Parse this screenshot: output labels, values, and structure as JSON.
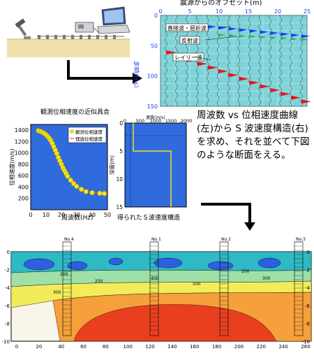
{
  "seismogram": {
    "title": "震源からのオフセット(m)",
    "x_ticks": [
      "0",
      "5",
      "10",
      "15",
      "20",
      "25"
    ],
    "y_ticks": [
      "0",
      "50",
      "100",
      "150"
    ],
    "ylabel": "走時(ms)",
    "labels": {
      "direct": "直接波・屈折波",
      "reflected": "反射波",
      "rayleigh": "レイリー波"
    },
    "colors": {
      "bg": "#7fd3d8",
      "direct": "#1a3cff",
      "reflected": "#2fb05a",
      "rayleigh": "#e8121a"
    }
  },
  "dispersion": {
    "title": "観測位相速度の近似具合",
    "legend": [
      "観測位相速度",
      "理論位相速度"
    ],
    "xlabel": "周波数(Hz)",
    "ylabel": "位相速度(m/s)",
    "x_ticks": [
      "0",
      "10",
      "20",
      "30",
      "40",
      "50"
    ],
    "y_ticks": [
      "1400",
      "1200",
      "1000",
      "800",
      "600",
      "400",
      "200"
    ],
    "colors": {
      "bg": "#2f6bdc",
      "points": "#f4e21a"
    }
  },
  "chart_data": {
    "type": "scatter",
    "title": "観測位相速度の近似具合",
    "xlabel": "周波数(Hz)",
    "ylabel": "位相速度(m/s)",
    "xlim": [
      0,
      50
    ],
    "ylim": [
      0,
      1500
    ],
    "series": [
      {
        "name": "観測位相速度",
        "x": [
          5,
          6,
          7,
          8,
          9,
          10,
          11,
          12,
          13,
          14,
          15,
          16,
          17,
          18,
          19,
          20,
          21,
          22,
          23,
          24,
          26,
          28,
          30,
          33,
          36,
          40,
          45,
          48
        ],
        "y": [
          1390,
          1380,
          1370,
          1355,
          1340,
          1320,
          1290,
          1260,
          1220,
          1170,
          1110,
          1050,
          990,
          920,
          860,
          800,
          740,
          690,
          640,
          590,
          520,
          460,
          410,
          360,
          320,
          300,
          290,
          285
        ]
      },
      {
        "name": "理論位相速度",
        "x": [
          5,
          8,
          11,
          14,
          17,
          20,
          23,
          26,
          30,
          35,
          40,
          45,
          48
        ],
        "y": [
          1390,
          1355,
          1290,
          1170,
          990,
          800,
          640,
          520,
          410,
          330,
          300,
          290,
          285
        ]
      }
    ]
  },
  "velocity_structure": {
    "caption": "得られたＳ波速度構造",
    "top_axis_label": "速度(m/s)",
    "x_ticks": [
      "0",
      "500",
      "1000",
      "1500",
      "2000"
    ],
    "y_ticks": [
      "0",
      "5",
      "10",
      "15"
    ],
    "ylabel": "深度(m)",
    "colors": {
      "bg": "#2f6bdc",
      "profile": "#f4e21a"
    }
  },
  "description": "周波数 vs 位相速度曲線(左)から S 波速度構造(右)を求め、それを並べて下図のような断面をえる。",
  "section": {
    "x_ticks": [
      "0",
      "20",
      "40",
      "60",
      "80",
      "100",
      "120",
      "140",
      "160",
      "180",
      "200",
      "220",
      "240",
      "260"
    ],
    "y_ticks": [
      "0",
      "-2",
      "-4",
      "-6",
      "-8",
      "-10"
    ],
    "boreholes": [
      "No.4",
      "No.1",
      "No.2",
      "No.3"
    ],
    "contour_labels": [
      "200",
      "250",
      "300",
      "400",
      "500",
      "300",
      "250"
    ]
  }
}
